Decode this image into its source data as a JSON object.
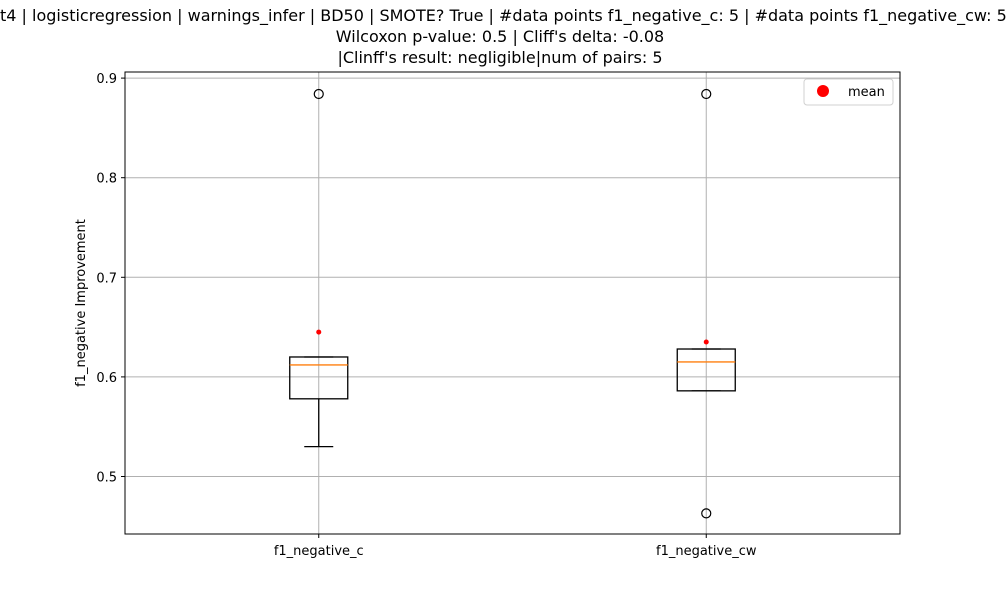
{
  "chart_data": {
    "type": "boxplot",
    "title_lines": [
      "t4 | logisticregression | warnings_infer | BD50 | SMOTE? True | #data points f1_negative_c: 5 | #data points f1_negative_cw: 5",
      "Wilcoxon p-value: 0.5 | Cliff's delta: -0.08",
      "|Clinff's result: negligible|num of pairs: 5"
    ],
    "xlabel": "",
    "ylabel": "f1_negative Improvement",
    "ylim": [
      0.44,
      0.905
    ],
    "yticks": [
      0.5,
      0.6,
      0.7,
      0.8,
      0.9
    ],
    "ytick_labels": [
      "0.5",
      "0.6",
      "0.7",
      "0.8",
      "0.9"
    ],
    "grid": true,
    "legend": {
      "position": "top-right",
      "entries": [
        {
          "label": "mean",
          "color": "#ff0000"
        }
      ]
    },
    "colors": {
      "box": "#000000",
      "median": "#ff7f0e",
      "mean": "#ff0000",
      "grid": "#b0b0b0"
    },
    "categories": [
      "f1_negative_c",
      "f1_negative_cw"
    ],
    "boxes": [
      {
        "label": "f1_negative_c",
        "whislo": 0.53,
        "q1": 0.578,
        "med": 0.612,
        "q3": 0.62,
        "whishi": 0.62,
        "fliers": [
          0.884
        ],
        "mean": 0.645
      },
      {
        "label": "f1_negative_cw",
        "whislo": 0.586,
        "q1": 0.586,
        "med": 0.615,
        "q3": 0.628,
        "whishi": 0.628,
        "fliers": [
          0.884,
          0.463
        ],
        "mean": 0.635
      }
    ]
  }
}
